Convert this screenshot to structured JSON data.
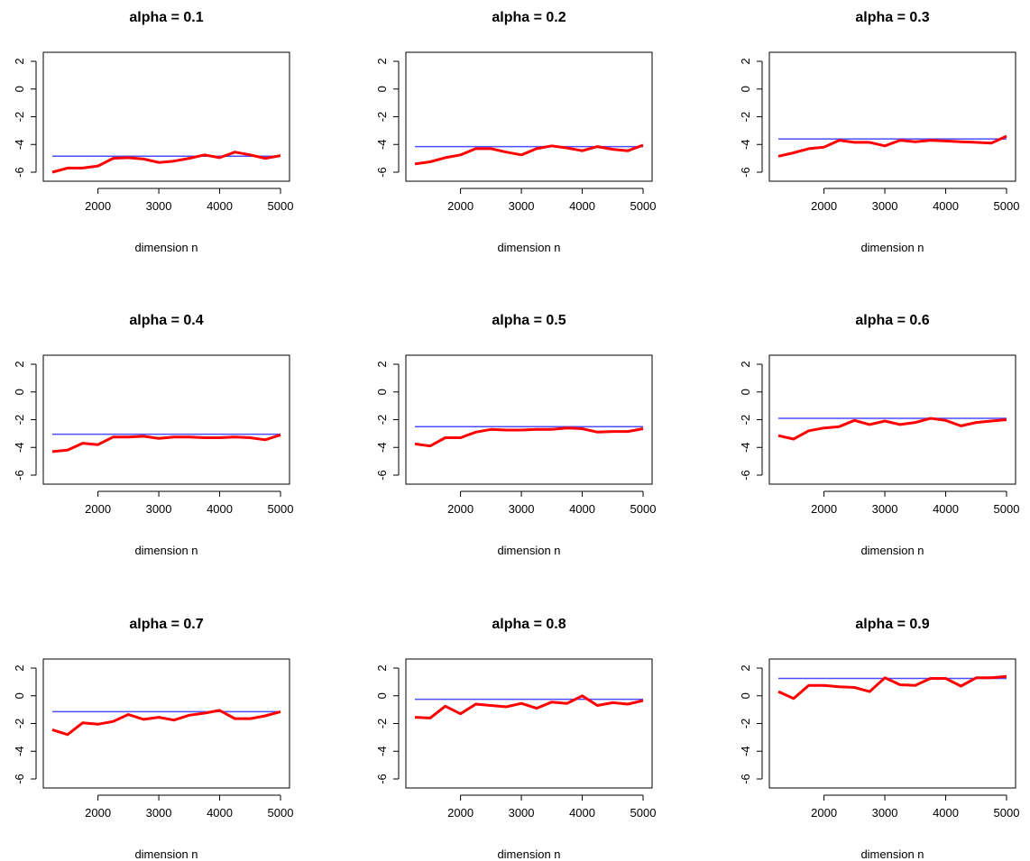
{
  "colors": {
    "reference_line": "#4d4dff",
    "series_line": "#ff0000",
    "axes": "#000000"
  },
  "chart_data": [
    {
      "type": "line",
      "title": "alpha = 0.1",
      "xlabel": "dimension n",
      "ylabel": "",
      "xlim": [
        1250,
        5000
      ],
      "ylim": [
        -6,
        2
      ],
      "xticks": [
        2000,
        3000,
        4000,
        5000
      ],
      "yticks": [
        2,
        0,
        -2,
        -4,
        -6
      ],
      "grid": false,
      "legend": "none",
      "x": [
        1250,
        1500,
        1750,
        2000,
        2250,
        2500,
        2750,
        3000,
        3250,
        3500,
        3750,
        4000,
        4250,
        4500,
        4750,
        5000
      ],
      "series": [
        {
          "values": [
            -6.0,
            -5.7,
            -5.7,
            -5.55,
            -5.0,
            -4.95,
            -5.05,
            -5.3,
            -5.2,
            -5.0,
            -4.75,
            -4.95,
            -4.55,
            -4.75,
            -5.0,
            -4.8
          ]
        },
        {
          "values": [
            -4.85,
            -4.85,
            -4.85,
            -4.85,
            -4.85,
            -4.85,
            -4.85,
            -4.85,
            -4.85,
            -4.85,
            -4.85,
            -4.85,
            -4.85,
            -4.85,
            -4.85,
            -4.85
          ]
        }
      ]
    },
    {
      "type": "line",
      "title": "alpha = 0.2",
      "xlabel": "dimension n",
      "ylabel": "",
      "xlim": [
        1250,
        5000
      ],
      "ylim": [
        -6,
        2
      ],
      "xticks": [
        2000,
        3000,
        4000,
        5000
      ],
      "yticks": [
        2,
        0,
        -2,
        -4,
        -6
      ],
      "grid": false,
      "legend": "none",
      "x": [
        1250,
        1500,
        1750,
        2000,
        2250,
        2500,
        2750,
        3000,
        3250,
        3500,
        3750,
        4000,
        4250,
        4500,
        4750,
        5000
      ],
      "series": [
        {
          "values": [
            -5.4,
            -5.25,
            -4.95,
            -4.75,
            -4.3,
            -4.3,
            -4.55,
            -4.75,
            -4.3,
            -4.1,
            -4.25,
            -4.45,
            -4.15,
            -4.35,
            -4.45,
            -4.05
          ]
        },
        {
          "values": [
            -4.15,
            -4.15,
            -4.15,
            -4.15,
            -4.15,
            -4.15,
            -4.15,
            -4.15,
            -4.15,
            -4.15,
            -4.15,
            -4.15,
            -4.15,
            -4.15,
            -4.15,
            -4.15
          ]
        }
      ]
    },
    {
      "type": "line",
      "title": "alpha = 0.3",
      "xlabel": "dimension n",
      "ylabel": "",
      "xlim": [
        1250,
        5000
      ],
      "ylim": [
        -6,
        2
      ],
      "xticks": [
        2000,
        3000,
        4000,
        5000
      ],
      "yticks": [
        2,
        0,
        -2,
        -4,
        -6
      ],
      "grid": false,
      "legend": "none",
      "x": [
        1250,
        1500,
        1750,
        2000,
        2250,
        2500,
        2750,
        3000,
        3250,
        3500,
        3750,
        4000,
        4250,
        4500,
        4750,
        5000
      ],
      "series": [
        {
          "values": [
            -4.85,
            -4.6,
            -4.3,
            -4.2,
            -3.7,
            -3.85,
            -3.85,
            -4.1,
            -3.7,
            -3.8,
            -3.7,
            -3.75,
            -3.8,
            -3.85,
            -3.9,
            -3.4
          ]
        },
        {
          "values": [
            -3.6,
            -3.6,
            -3.6,
            -3.6,
            -3.6,
            -3.6,
            -3.6,
            -3.6,
            -3.6,
            -3.6,
            -3.6,
            -3.6,
            -3.6,
            -3.6,
            -3.6,
            -3.6
          ]
        }
      ]
    },
    {
      "type": "line",
      "title": "alpha = 0.4",
      "xlabel": "dimension n",
      "ylabel": "",
      "xlim": [
        1250,
        5000
      ],
      "ylim": [
        -6,
        2
      ],
      "xticks": [
        2000,
        3000,
        4000,
        5000
      ],
      "yticks": [
        2,
        0,
        -2,
        -4,
        -6
      ],
      "grid": false,
      "legend": "none",
      "x": [
        1250,
        1500,
        1750,
        2000,
        2250,
        2500,
        2750,
        3000,
        3250,
        3500,
        3750,
        4000,
        4250,
        4500,
        4750,
        5000
      ],
      "series": [
        {
          "values": [
            -4.3,
            -4.2,
            -3.7,
            -3.8,
            -3.25,
            -3.25,
            -3.2,
            -3.35,
            -3.25,
            -3.25,
            -3.3,
            -3.3,
            -3.25,
            -3.3,
            -3.45,
            -3.1
          ]
        },
        {
          "values": [
            -3.05,
            -3.05,
            -3.05,
            -3.05,
            -3.05,
            -3.05,
            -3.05,
            -3.05,
            -3.05,
            -3.05,
            -3.05,
            -3.05,
            -3.05,
            -3.05,
            -3.05,
            -3.05
          ]
        }
      ]
    },
    {
      "type": "line",
      "title": "alpha = 0.5",
      "xlabel": "dimension n",
      "ylabel": "",
      "xlim": [
        1250,
        5000
      ],
      "ylim": [
        -6,
        2
      ],
      "xticks": [
        2000,
        3000,
        4000,
        5000
      ],
      "yticks": [
        2,
        0,
        -2,
        -4,
        -6
      ],
      "grid": false,
      "legend": "none",
      "x": [
        1250,
        1500,
        1750,
        2000,
        2250,
        2500,
        2750,
        3000,
        3250,
        3500,
        3750,
        4000,
        4250,
        4500,
        4750,
        5000
      ],
      "series": [
        {
          "values": [
            -3.75,
            -3.9,
            -3.3,
            -3.3,
            -2.9,
            -2.7,
            -2.75,
            -2.75,
            -2.7,
            -2.7,
            -2.6,
            -2.65,
            -2.9,
            -2.85,
            -2.85,
            -2.65
          ]
        },
        {
          "values": [
            -2.5,
            -2.5,
            -2.5,
            -2.5,
            -2.5,
            -2.5,
            -2.5,
            -2.5,
            -2.5,
            -2.5,
            -2.5,
            -2.5,
            -2.5,
            -2.5,
            -2.5,
            -2.5
          ]
        }
      ]
    },
    {
      "type": "line",
      "title": "alpha = 0.6",
      "xlabel": "dimension n",
      "ylabel": "",
      "xlim": [
        1250,
        5000
      ],
      "ylim": [
        -6,
        2
      ],
      "xticks": [
        2000,
        3000,
        4000,
        5000
      ],
      "yticks": [
        2,
        0,
        -2,
        -4,
        -6
      ],
      "grid": false,
      "legend": "none",
      "x": [
        1250,
        1500,
        1750,
        2000,
        2250,
        2500,
        2750,
        3000,
        3250,
        3500,
        3750,
        4000,
        4250,
        4500,
        4750,
        5000
      ],
      "series": [
        {
          "values": [
            -3.15,
            -3.4,
            -2.8,
            -2.6,
            -2.5,
            -2.05,
            -2.35,
            -2.1,
            -2.35,
            -2.2,
            -1.9,
            -2.05,
            -2.45,
            -2.2,
            -2.1,
            -2.0
          ]
        },
        {
          "values": [
            -1.9,
            -1.9,
            -1.9,
            -1.9,
            -1.9,
            -1.9,
            -1.9,
            -1.9,
            -1.9,
            -1.9,
            -1.9,
            -1.9,
            -1.9,
            -1.9,
            -1.9,
            -1.9
          ]
        }
      ]
    },
    {
      "type": "line",
      "title": "alpha = 0.7",
      "xlabel": "dimension n",
      "ylabel": "",
      "xlim": [
        1250,
        5000
      ],
      "ylim": [
        -6,
        2
      ],
      "xticks": [
        2000,
        3000,
        4000,
        5000
      ],
      "yticks": [
        2,
        0,
        -2,
        -4,
        -6
      ],
      "grid": false,
      "legend": "none",
      "x": [
        1250,
        1500,
        1750,
        2000,
        2250,
        2500,
        2750,
        3000,
        3250,
        3500,
        3750,
        4000,
        4250,
        4500,
        4750,
        5000
      ],
      "series": [
        {
          "values": [
            -2.45,
            -2.8,
            -1.95,
            -2.05,
            -1.85,
            -1.35,
            -1.7,
            -1.55,
            -1.75,
            -1.4,
            -1.25,
            -1.05,
            -1.65,
            -1.65,
            -1.45,
            -1.15
          ]
        },
        {
          "values": [
            -1.15,
            -1.15,
            -1.15,
            -1.15,
            -1.15,
            -1.15,
            -1.15,
            -1.15,
            -1.15,
            -1.15,
            -1.15,
            -1.15,
            -1.15,
            -1.15,
            -1.15,
            -1.15
          ]
        }
      ]
    },
    {
      "type": "line",
      "title": "alpha = 0.8",
      "xlabel": "dimension n",
      "ylabel": "",
      "xlim": [
        1250,
        5000
      ],
      "ylim": [
        -6,
        2
      ],
      "xticks": [
        2000,
        3000,
        4000,
        5000
      ],
      "yticks": [
        2,
        0,
        -2,
        -4,
        -6
      ],
      "grid": false,
      "legend": "none",
      "x": [
        1250,
        1500,
        1750,
        2000,
        2250,
        2500,
        2750,
        3000,
        3250,
        3500,
        3750,
        4000,
        4250,
        4500,
        4750,
        5000
      ],
      "series": [
        {
          "values": [
            -1.55,
            -1.6,
            -0.75,
            -1.3,
            -0.6,
            -0.7,
            -0.8,
            -0.55,
            -0.9,
            -0.45,
            -0.55,
            0.0,
            -0.7,
            -0.5,
            -0.6,
            -0.35
          ]
        },
        {
          "values": [
            -0.25,
            -0.25,
            -0.25,
            -0.25,
            -0.25,
            -0.25,
            -0.25,
            -0.25,
            -0.25,
            -0.25,
            -0.25,
            -0.25,
            -0.25,
            -0.25,
            -0.25,
            -0.25
          ]
        }
      ]
    },
    {
      "type": "line",
      "title": "alpha = 0.9",
      "xlabel": "dimension n",
      "ylabel": "",
      "xlim": [
        1250,
        5000
      ],
      "ylim": [
        -6,
        2
      ],
      "xticks": [
        2000,
        3000,
        4000,
        5000
      ],
      "yticks": [
        2,
        0,
        -2,
        -4,
        -6
      ],
      "grid": false,
      "legend": "none",
      "x": [
        1250,
        1500,
        1750,
        2000,
        2250,
        2500,
        2750,
        3000,
        3250,
        3500,
        3750,
        4000,
        4250,
        4500,
        4750,
        5000
      ],
      "series": [
        {
          "values": [
            0.3,
            -0.2,
            0.75,
            0.75,
            0.65,
            0.6,
            0.3,
            1.3,
            0.8,
            0.75,
            1.25,
            1.25,
            0.7,
            1.3,
            1.3,
            1.4
          ]
        },
        {
          "values": [
            1.25,
            1.25,
            1.25,
            1.25,
            1.25,
            1.25,
            1.25,
            1.25,
            1.25,
            1.25,
            1.25,
            1.25,
            1.25,
            1.25,
            1.25,
            1.25
          ]
        }
      ]
    }
  ]
}
